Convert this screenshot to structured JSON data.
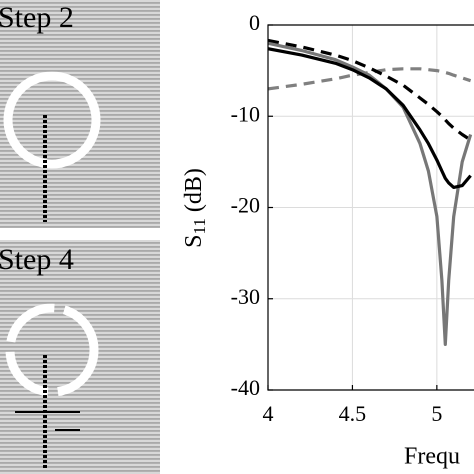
{
  "steps": {
    "labels": [
      "Step 2",
      "Step 4"
    ]
  },
  "chart_data": {
    "type": "line",
    "xlabel": "Frequ",
    "ylabel": {
      "main": "S",
      "sub": "11",
      "unit": "(dB)"
    },
    "x": [
      4,
      4.2,
      4.4,
      4.5,
      4.6,
      4.7,
      4.8,
      4.9,
      4.95,
      5.0,
      5.03,
      5.05,
      5.07,
      5.1,
      5.15,
      5.2
    ],
    "series": [
      {
        "color": "#808080",
        "style": "dashed",
        "values": [
          -7,
          -6.5,
          -5.9,
          -5.5,
          -5.2,
          -4.9,
          -4.8,
          -4.8,
          -4.9,
          -5,
          -5.1,
          -5.2,
          -5.3,
          -5.5,
          -5.8,
          -6.1
        ]
      },
      {
        "color": "#000000",
        "style": "dashed",
        "values": [
          -1.7,
          -2.4,
          -3.3,
          -3.9,
          -4.7,
          -5.6,
          -6.6,
          -8,
          -8.7,
          -9.5,
          -10,
          -10.4,
          -10.8,
          -11.3,
          -12,
          -12.6
        ]
      },
      {
        "color": "#777777",
        "style": "solid",
        "values": [
          -2,
          -2.8,
          -3.8,
          -4.6,
          -5.5,
          -7,
          -9,
          -13,
          -16,
          -21,
          -28,
          -35,
          -28,
          -21,
          -15,
          -12
        ]
      },
      {
        "color": "#000000",
        "style": "solid",
        "values": [
          -2.6,
          -3.3,
          -4.2,
          -4.9,
          -5.8,
          -7,
          -8.8,
          -11.5,
          -13,
          -14.8,
          -16,
          -16.8,
          -17.3,
          -17.8,
          -17.6,
          -16.5
        ]
      }
    ],
    "xlim": [
      4,
      5.22
    ],
    "xticks": [
      4,
      4.5,
      5
    ],
    "ylim": [
      -40,
      0
    ],
    "yticks": [
      0,
      -10,
      -20,
      -30,
      -40
    ],
    "grid": true
  }
}
